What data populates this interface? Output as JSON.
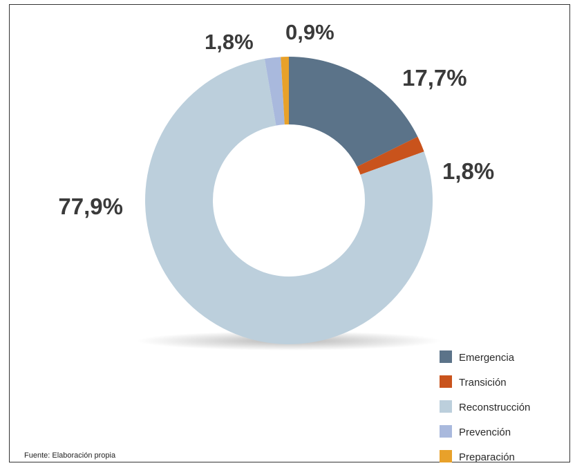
{
  "chart_data": {
    "type": "pie",
    "donut": true,
    "categories": [
      "Emergencia",
      "Transición",
      "Reconstrucción",
      "Prevención",
      "Preparación"
    ],
    "values": [
      17.7,
      1.8,
      77.9,
      1.8,
      0.9
    ],
    "data_labels": [
      "17,7%",
      "1,8%",
      "77,9%",
      "1,8%",
      "0,9%"
    ],
    "colors": [
      "#5b7389",
      "#c9531c",
      "#bccfdc",
      "#a9b9dd",
      "#e8a12a"
    ],
    "legend_position": "bottom-right",
    "title": "",
    "source": "Fuente: Elaboración propia"
  }
}
